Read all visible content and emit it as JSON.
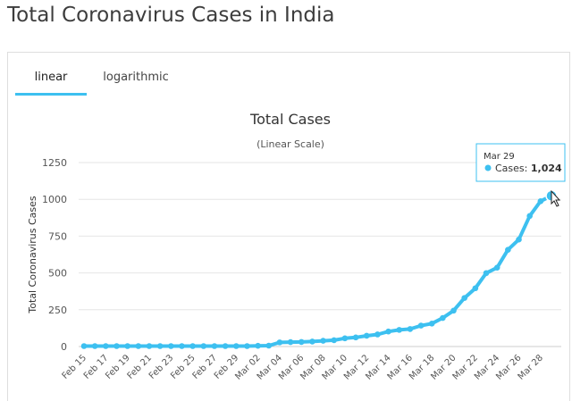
{
  "page": {
    "title": "Total Coronavirus Cases in India"
  },
  "tabs": [
    {
      "label": "linear",
      "active": true
    },
    {
      "label": "logarithmic",
      "active": false
    }
  ],
  "tooltip": {
    "date": "Mar 29",
    "series_label": "Cases:",
    "value_text": "1,024"
  },
  "colors": {
    "series": "#3dc0f0",
    "accent": "#3dc0f0",
    "grid": "#e6e6e6",
    "axis_text": "#555555"
  },
  "chart_data": {
    "type": "line",
    "title": "Total Cases",
    "subtitle": "(Linear Scale)",
    "xlabel": "",
    "ylabel": "Total Coronavirus Cases",
    "ylim": [
      0,
      1250
    ],
    "yticks": [
      0,
      250,
      500,
      750,
      1000,
      1250
    ],
    "grid": true,
    "x": [
      "Feb 15",
      "Feb 16",
      "Feb 17",
      "Feb 18",
      "Feb 19",
      "Feb 20",
      "Feb 21",
      "Feb 22",
      "Feb 23",
      "Feb 24",
      "Feb 25",
      "Feb 26",
      "Feb 27",
      "Feb 28",
      "Feb 29",
      "Mar 01",
      "Mar 02",
      "Mar 03",
      "Mar 04",
      "Mar 05",
      "Mar 06",
      "Mar 07",
      "Mar 08",
      "Mar 09",
      "Mar 10",
      "Mar 11",
      "Mar 12",
      "Mar 13",
      "Mar 14",
      "Mar 15",
      "Mar 16",
      "Mar 17",
      "Mar 18",
      "Mar 19",
      "Mar 20",
      "Mar 21",
      "Mar 22",
      "Mar 23",
      "Mar 24",
      "Mar 25",
      "Mar 26",
      "Mar 27",
      "Mar 28",
      "Mar 29"
    ],
    "xtick_labels": [
      "Feb 15",
      "Feb 17",
      "Feb 19",
      "Feb 21",
      "Feb 23",
      "Feb 25",
      "Feb 27",
      "Feb 29",
      "Mar 02",
      "Mar 04",
      "Mar 06",
      "Mar 08",
      "Mar 10",
      "Mar 12",
      "Mar 14",
      "Mar 16",
      "Mar 18",
      "Mar 20",
      "Mar 22",
      "Mar 24",
      "Mar 26",
      "Mar 28"
    ],
    "series": [
      {
        "values": [
          3,
          3,
          3,
          3,
          3,
          3,
          3,
          3,
          3,
          3,
          3,
          3,
          3,
          3,
          3,
          3,
          5,
          6,
          28,
          30,
          31,
          34,
          39,
          43,
          56,
          62,
          73,
          82,
          102,
          113,
          119,
          142,
          156,
          194,
          244,
          330,
          396,
          499,
          536,
          657,
          727,
          887,
          987,
          1024
        ]
      }
    ]
  }
}
